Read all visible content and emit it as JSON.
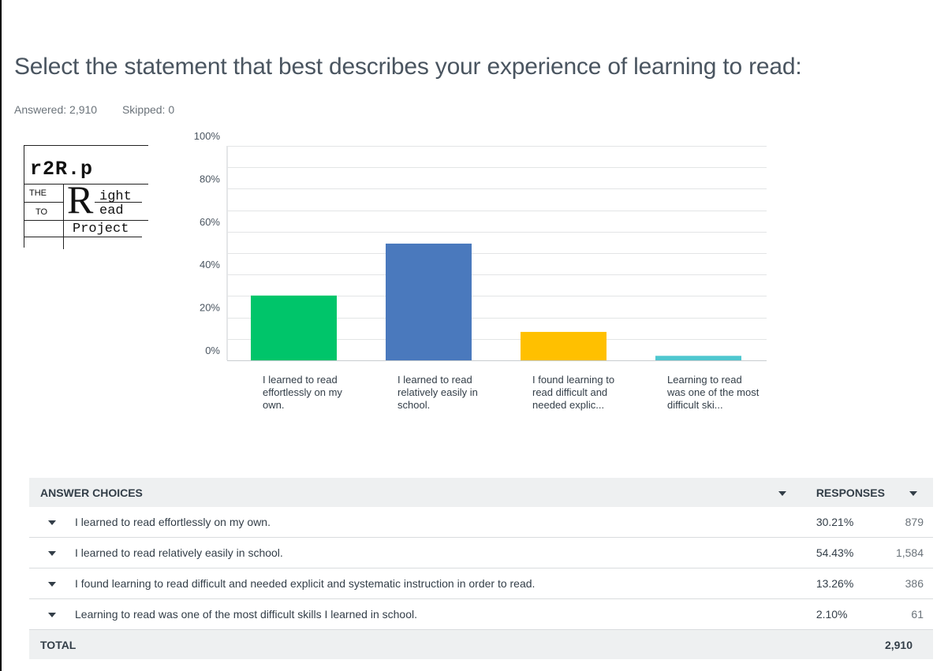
{
  "question": {
    "title": "Select the statement that best describes your experience of learning to read:",
    "answered": "Answered: 2,910",
    "skipped": "Skipped: 0"
  },
  "logo": {
    "line1": "r2R.p",
    "the": "THE",
    "to": "TO",
    "big_r": "R",
    "ight": "ight",
    "ead": "ead",
    "project": "Project"
  },
  "colors": {
    "green": "#00c56a",
    "blue": "#4a79bd",
    "yellow": "#ffc000",
    "teal": "#4ec7cf",
    "gridline": "#e3e5e6"
  },
  "chart_data": {
    "type": "bar",
    "categories": [
      "I learned to read effortlessly on my own.",
      "I learned to read relatively easily in school.",
      "I found learning to read difficult and needed explic...",
      "Learning to read was one of the most difficult ski..."
    ],
    "category_labels": [
      "I learned to read effortlessly on my own.",
      "I learned to read relatively easily in school.",
      "I found learning to read difficult and needed explic...",
      "Learning to read was one of the most difficult ski..."
    ],
    "values": [
      30.21,
      54.43,
      13.26,
      2.1
    ],
    "bar_colors": [
      "#00c56a",
      "#4a79bd",
      "#ffc000",
      "#4ec7cf"
    ],
    "yticks": [
      "100%",
      "80%",
      "60%",
      "40%",
      "20%",
      "0%"
    ],
    "ylim": [
      0,
      100
    ],
    "grid": true,
    "title": "",
    "xlabel": "",
    "ylabel": ""
  },
  "table": {
    "header_choices": "ANSWER CHOICES",
    "header_responses": "RESPONSES",
    "rows": [
      {
        "choice": "I learned to read effortlessly on my own.",
        "percent": "30.21%",
        "count": "879"
      },
      {
        "choice": "I learned to read relatively easily in school.",
        "percent": "54.43%",
        "count": "1,584"
      },
      {
        "choice": "I found learning to read difficult and needed explicit and systematic instruction in order to read.",
        "percent": "13.26%",
        "count": "386"
      },
      {
        "choice": "Learning to read was one of the most difficult skills I learned in school.",
        "percent": "2.10%",
        "count": "61"
      }
    ],
    "total_label": "TOTAL",
    "total_count": "2,910"
  }
}
